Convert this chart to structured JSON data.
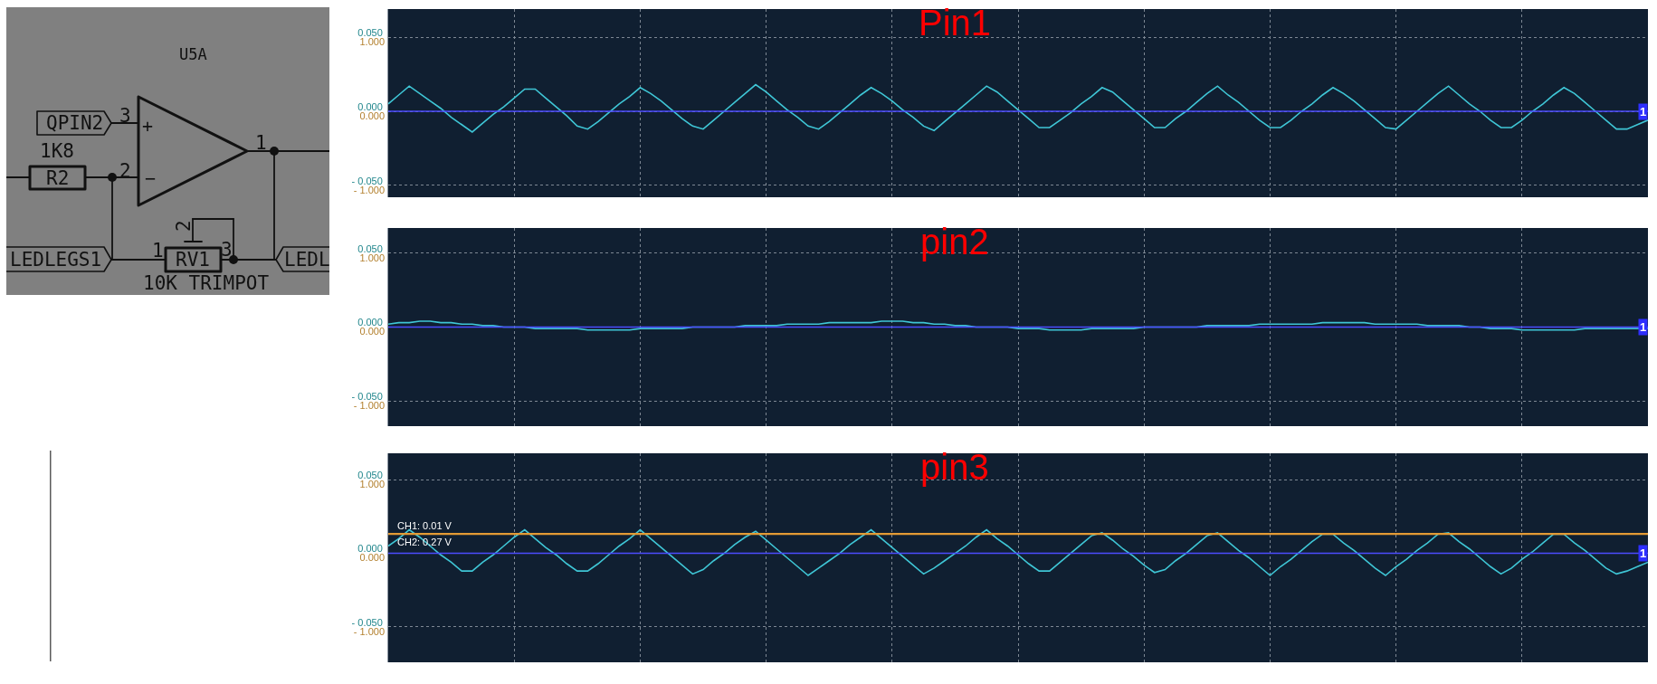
{
  "chart_data": [
    {
      "type": "other",
      "annotations": [
        "U5A",
        "QPIN2",
        "3",
        "+",
        "1K8",
        "R2",
        "2",
        "−",
        "1",
        "2",
        "1",
        "RV1",
        "3",
        "LEDLEGS1",
        "LEDL",
        "10K TRIMPOT"
      ]
    },
    {
      "type": "line",
      "title": "Pin1",
      "categories": [
        null,
        null,
        null,
        null,
        null,
        null,
        null,
        null,
        null,
        null,
        null,
        null,
        null,
        null,
        null,
        null,
        null,
        null,
        null,
        null,
        null,
        null,
        null,
        null,
        null,
        null,
        null,
        null,
        null,
        null,
        null,
        null,
        null,
        null,
        null,
        null,
        null,
        null,
        null,
        null,
        null,
        null,
        null,
        null,
        null,
        null,
        null,
        null,
        null,
        null,
        null,
        null,
        null,
        null,
        null,
        null,
        null,
        null,
        null,
        null,
        null,
        null,
        null,
        null,
        null,
        null,
        null,
        null,
        null,
        null,
        null,
        null,
        null,
        null,
        null,
        null,
        null,
        null,
        null,
        null,
        null,
        null,
        null,
        null,
        null,
        null,
        null,
        null,
        null,
        null,
        null,
        null,
        null,
        null,
        null,
        null,
        null,
        null,
        null,
        null,
        null,
        null,
        null,
        null,
        null,
        null,
        null,
        null,
        null,
        null,
        null,
        null,
        null,
        null,
        null,
        null,
        null,
        null,
        null,
        null,
        null
      ],
      "series": [
        {
          "color": "#3fc6d6",
          "values": [
            0.005,
            0.011,
            0.017,
            0.012,
            0.007,
            0.002,
            -0.004,
            -0.009,
            -0.014,
            -0.008,
            -0.002,
            0.003,
            0.009,
            0.015,
            0.015,
            0.009,
            0.003,
            -0.003,
            -0.01,
            -0.012,
            -0.007,
            -0.001,
            0.005,
            0.01,
            0.016,
            0.012,
            0.007,
            0.001,
            -0.005,
            -0.01,
            -0.012,
            -0.006,
            0.0,
            0.006,
            0.012,
            0.018,
            0.013,
            0.007,
            0.001,
            -0.004,
            -0.01,
            -0.012,
            -0.007,
            -0.001,
            0.005,
            0.011,
            0.016,
            0.012,
            0.007,
            0.001,
            -0.004,
            -0.01,
            -0.013,
            -0.007,
            -0.001,
            0.005,
            0.011,
            0.017,
            0.013,
            0.007,
            0.001,
            -0.005,
            -0.011,
            -0.011,
            -0.006,
            -0.001,
            0.005,
            0.01,
            0.016,
            0.013,
            0.007,
            0.001,
            -0.005,
            -0.011,
            -0.011,
            -0.005,
            0.0,
            0.006,
            0.012,
            0.017,
            0.011,
            0.006,
            0.0,
            -0.006,
            -0.011,
            -0.011,
            -0.006,
            0.0,
            0.005,
            0.011,
            0.016,
            0.012,
            0.007,
            0.001,
            -0.005,
            -0.011,
            -0.012,
            -0.006,
            0.0,
            0.006,
            0.012,
            0.017,
            0.011,
            0.005,
            0.0,
            -0.006,
            -0.011,
            -0.011,
            -0.006,
            0.0,
            0.005,
            0.011,
            0.016,
            0.012,
            0.006,
            0.0,
            -0.006,
            -0.012,
            -0.012,
            -0.009,
            -0.006
          ]
        }
      ],
      "ylim": [
        -0.058,
        0.069
      ],
      "yticks": [
        {
          "value": 0.05,
          "label": "0.050"
        },
        {
          "value": 0,
          "label": "0.000"
        },
        {
          "value": -0.05,
          "label": "- 0.050"
        }
      ],
      "y2lim": [
        -1.16,
        1.38
      ],
      "y2ticks": [
        {
          "value": 1,
          "label": "1.000"
        },
        {
          "value": 0,
          "label": "0.000"
        },
        {
          "value": -1,
          "label": "- 1.000"
        }
      ],
      "grid": true,
      "ref_lines": [
        {
          "axis": "y",
          "value": 0,
          "color": "#4b4bff"
        }
      ],
      "annotations": [
        {
          "text": "1",
          "y": 0
        }
      ]
    },
    {
      "type": "line",
      "title": "pin2",
      "categories": [
        null,
        null,
        null,
        null,
        null,
        null,
        null,
        null,
        null,
        null,
        null,
        null,
        null,
        null,
        null,
        null,
        null,
        null,
        null,
        null,
        null,
        null,
        null,
        null,
        null,
        null,
        null,
        null,
        null,
        null,
        null,
        null,
        null,
        null,
        null,
        null,
        null,
        null,
        null,
        null,
        null,
        null,
        null,
        null,
        null,
        null,
        null,
        null,
        null,
        null,
        null,
        null,
        null,
        null,
        null,
        null,
        null,
        null,
        null,
        null,
        null,
        null,
        null,
        null,
        null,
        null,
        null,
        null,
        null,
        null,
        null,
        null,
        null,
        null,
        null,
        null,
        null,
        null,
        null,
        null,
        null,
        null,
        null,
        null,
        null,
        null,
        null,
        null,
        null,
        null,
        null,
        null,
        null,
        null,
        null,
        null,
        null,
        null,
        null,
        null,
        null,
        null,
        null,
        null,
        null,
        null,
        null,
        null,
        null,
        null,
        null,
        null,
        null,
        null,
        null,
        null,
        null,
        null,
        null,
        null,
        null
      ],
      "series": [
        {
          "color": "#3fc6d6",
          "values": [
            0.002,
            0.003,
            0.003,
            0.004,
            0.004,
            0.003,
            0.003,
            0.002,
            0.002,
            0.001,
            0.001,
            0.0,
            0.0,
            0.0,
            -0.001,
            -0.001,
            -0.001,
            -0.001,
            -0.001,
            -0.002,
            -0.002,
            -0.002,
            -0.002,
            -0.002,
            -0.001,
            -0.001,
            -0.001,
            -0.001,
            -0.001,
            0.0,
            0.0,
            0.0,
            0.0,
            0.0,
            0.001,
            0.001,
            0.001,
            0.001,
            0.002,
            0.002,
            0.002,
            0.002,
            0.003,
            0.003,
            0.003,
            0.003,
            0.003,
            0.004,
            0.004,
            0.004,
            0.003,
            0.003,
            0.002,
            0.002,
            0.001,
            0.001,
            0.0,
            0.0,
            0.0,
            0.0,
            -0.001,
            -0.001,
            -0.001,
            -0.002,
            -0.002,
            -0.002,
            -0.002,
            -0.001,
            -0.001,
            -0.001,
            -0.001,
            -0.001,
            0.0,
            0.0,
            0.0,
            0.0,
            0.0,
            0.0,
            0.001,
            0.001,
            0.001,
            0.001,
            0.001,
            0.002,
            0.002,
            0.002,
            0.002,
            0.002,
            0.002,
            0.003,
            0.003,
            0.003,
            0.003,
            0.003,
            0.002,
            0.002,
            0.002,
            0.002,
            0.002,
            0.001,
            0.001,
            0.001,
            0.001,
            0.0,
            0.0,
            -0.001,
            -0.001,
            -0.001,
            -0.002,
            -0.002,
            -0.002,
            -0.002,
            -0.002,
            -0.002,
            -0.001,
            -0.001,
            -0.001,
            -0.001,
            -0.001,
            -0.001,
            -0.001
          ]
        }
      ],
      "ylim": [
        -0.067,
        0.067
      ],
      "yticks": [
        {
          "value": 0.05,
          "label": "0.050"
        },
        {
          "value": 0,
          "label": "0.000"
        },
        {
          "value": -0.05,
          "label": "- 0.050"
        }
      ],
      "y2lim": [
        -1.34,
        1.34
      ],
      "y2ticks": [
        {
          "value": 1,
          "label": "1.000"
        },
        {
          "value": 0,
          "label": "0.000"
        },
        {
          "value": -1,
          "label": "- 1.000"
        }
      ],
      "grid": true,
      "ref_lines": [
        {
          "axis": "y",
          "value": 0,
          "color": "#4b4bff"
        }
      ],
      "annotations": [
        {
          "text": "1",
          "y": 0
        }
      ]
    },
    {
      "type": "line",
      "title": "pin3",
      "categories": [
        null,
        null,
        null,
        null,
        null,
        null,
        null,
        null,
        null,
        null,
        null,
        null,
        null,
        null,
        null,
        null,
        null,
        null,
        null,
        null,
        null,
        null,
        null,
        null,
        null,
        null,
        null,
        null,
        null,
        null,
        null,
        null,
        null,
        null,
        null,
        null,
        null,
        null,
        null,
        null,
        null,
        null,
        null,
        null,
        null,
        null,
        null,
        null,
        null,
        null,
        null,
        null,
        null,
        null,
        null,
        null,
        null,
        null,
        null,
        null,
        null,
        null,
        null,
        null,
        null,
        null,
        null,
        null,
        null,
        null,
        null,
        null,
        null,
        null,
        null,
        null,
        null,
        null,
        null,
        null,
        null,
        null,
        null,
        null,
        null,
        null,
        null,
        null,
        null,
        null,
        null,
        null,
        null,
        null,
        null,
        null,
        null,
        null,
        null,
        null,
        null,
        null,
        null,
        null,
        null,
        null,
        null,
        null,
        null,
        null,
        null,
        null,
        null,
        null,
        null,
        null,
        null,
        null,
        null,
        null,
        null
      ],
      "series": [
        {
          "color": "#3fc6d6",
          "values": [
            0.005,
            0.01,
            0.016,
            0.011,
            0.005,
            -0.001,
            -0.006,
            -0.012,
            -0.012,
            -0.006,
            -0.001,
            0.005,
            0.011,
            0.016,
            0.01,
            0.004,
            -0.001,
            -0.007,
            -0.012,
            -0.012,
            -0.007,
            -0.001,
            0.005,
            0.01,
            0.016,
            0.01,
            0.004,
            -0.002,
            -0.008,
            -0.014,
            -0.011,
            -0.005,
            0.0,
            0.006,
            0.011,
            0.015,
            0.009,
            0.003,
            -0.003,
            -0.009,
            -0.015,
            -0.01,
            -0.005,
            0.0,
            0.006,
            0.011,
            0.016,
            0.01,
            0.004,
            -0.002,
            -0.008,
            -0.014,
            -0.01,
            -0.005,
            0.0,
            0.005,
            0.011,
            0.016,
            0.01,
            0.005,
            -0.001,
            -0.007,
            -0.012,
            -0.012,
            -0.006,
            0.0,
            0.006,
            0.012,
            0.014,
            0.009,
            0.003,
            -0.002,
            -0.008,
            -0.013,
            -0.011,
            -0.005,
            0.0,
            0.006,
            0.012,
            0.014,
            0.008,
            0.002,
            -0.003,
            -0.009,
            -0.015,
            -0.009,
            -0.004,
            0.002,
            0.008,
            0.013,
            0.013,
            0.007,
            0.002,
            -0.004,
            -0.01,
            -0.015,
            -0.009,
            -0.004,
            0.002,
            0.007,
            0.013,
            0.014,
            0.008,
            0.003,
            -0.003,
            -0.009,
            -0.014,
            -0.01,
            -0.004,
            0.001,
            0.007,
            0.013,
            0.013,
            0.007,
            0.002,
            -0.004,
            -0.01,
            -0.014,
            -0.012,
            -0.009,
            -0.006
          ]
        }
      ],
      "ylim": [
        -0.074,
        0.068
      ],
      "yticks": [
        {
          "value": 0.05,
          "label": "0.050"
        },
        {
          "value": 0,
          "label": "0.000"
        },
        {
          "value": -0.05,
          "label": "- 0.050"
        }
      ],
      "y2lim": [
        -1.48,
        1.36
      ],
      "y2ticks": [
        {
          "value": 1,
          "label": "1.000"
        },
        {
          "value": 0,
          "label": "0.000"
        },
        {
          "value": -1,
          "label": "- 1.000"
        }
      ],
      "grid": true,
      "ref_lines": [
        {
          "axis": "y",
          "value": 0,
          "color": "#4b4bff"
        },
        {
          "axis": "y",
          "value": 0.013,
          "label": "CH1: 0.01 V",
          "color": "#e39a35"
        },
        {
          "axis": "y2",
          "value": 0.27,
          "label": "CH2: 0.27 V",
          "color": "#e39a35"
        }
      ],
      "annotations": [
        {
          "text": "1",
          "y": 0
        }
      ]
    }
  ]
}
